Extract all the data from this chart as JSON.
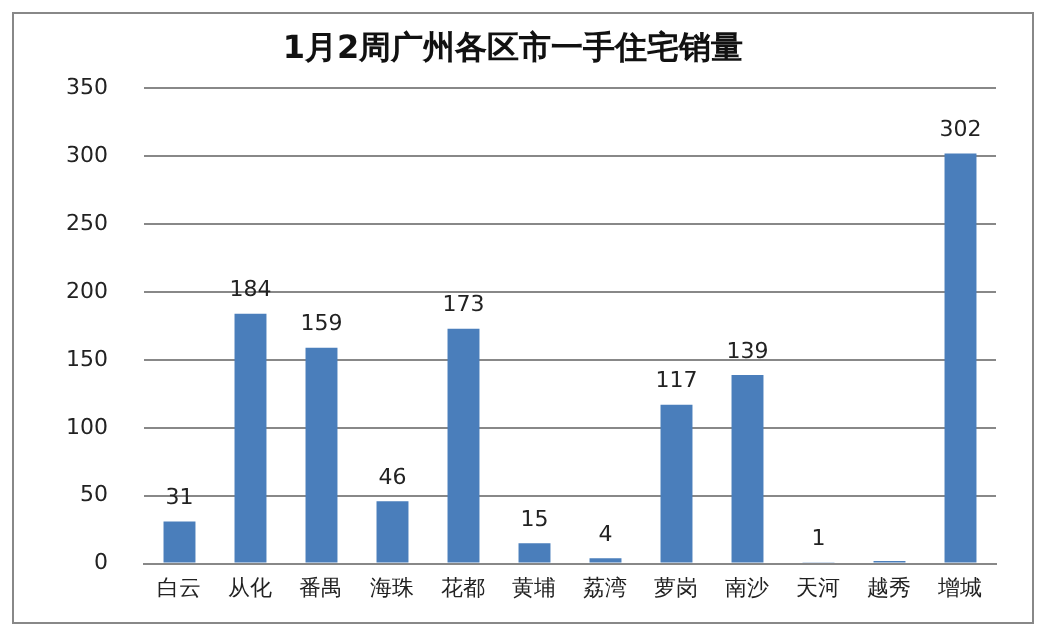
{
  "chart_data": {
    "type": "bar",
    "title": "1月2周广州各区市一手住宅销量",
    "categories": [
      "白云",
      "从化",
      "番禺",
      "海珠",
      "花都",
      "黄埔",
      "荔湾",
      "萝岗",
      "南沙",
      "天河",
      "越秀",
      "增城"
    ],
    "values": [
      31,
      184,
      159,
      46,
      173,
      15,
      4,
      117,
      139,
      1,
      2,
      302
    ],
    "value_labels": [
      "31",
      "184",
      "159",
      "46",
      "173",
      "15",
      "4",
      "117",
      "139",
      "1",
      null,
      "302"
    ],
    "color": "#4a7ebb",
    "ylim": [
      0,
      350
    ],
    "yticks": [
      0,
      50,
      100,
      150,
      200,
      250,
      300,
      350
    ],
    "grid": "y"
  }
}
